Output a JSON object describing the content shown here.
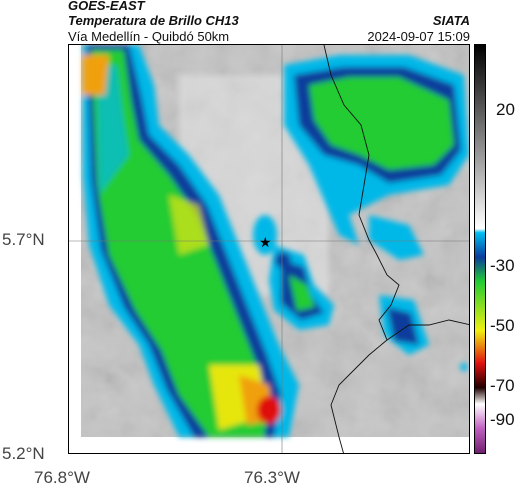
{
  "header": {
    "satellite": "GOES-EAST",
    "product": "Temperatura de Brillo CH13",
    "region": "Vía Medellín - Quibdó 50km",
    "agency": "SIATA",
    "timestamp": "2024-09-07 15:09"
  },
  "map": {
    "lat_ticks": [
      "5.7°N",
      "5.2°N"
    ],
    "lon_ticks": [
      "76.8°W",
      "76.3°W"
    ],
    "marker": "★",
    "colors": {
      "warm_gray": "#c8c8c8",
      "cold_cyan": "#00b8e8",
      "blue": "#0a3c9c",
      "green": "#2ad02a",
      "yellow": "#f0e010",
      "red": "#e01010",
      "border_line": "#111111"
    }
  },
  "colorbar": {
    "ticks": [
      "20",
      "-30",
      "-50",
      "-70",
      "-90"
    ],
    "unit_hint": "brightness temperature scale"
  }
}
